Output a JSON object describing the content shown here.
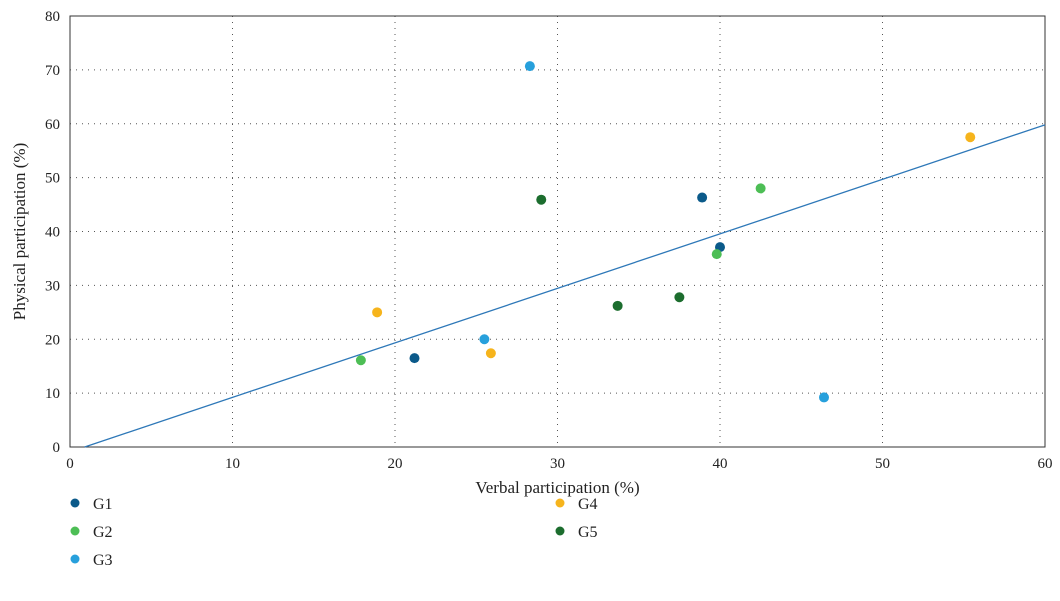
{
  "chart_data": {
    "type": "scatter",
    "xlabel": "Verbal participation (%)",
    "ylabel": "Physical participation (%)",
    "xlim": [
      0,
      60
    ],
    "ylim": [
      0,
      80
    ],
    "x_ticks": [
      0,
      10,
      20,
      30,
      40,
      50,
      60
    ],
    "y_ticks": [
      0,
      10,
      20,
      30,
      40,
      50,
      60,
      70,
      80
    ],
    "grid": true,
    "legend_position": "bottom",
    "series": [
      {
        "name": "G1",
        "color": "#0b5a8a",
        "points": [
          {
            "x": 21.2,
            "y": 16.5
          },
          {
            "x": 38.9,
            "y": 46.3
          },
          {
            "x": 40.0,
            "y": 37.1
          }
        ]
      },
      {
        "name": "G2",
        "color": "#4dbe55",
        "points": [
          {
            "x": 17.9,
            "y": 16.1
          },
          {
            "x": 39.8,
            "y": 35.8
          },
          {
            "x": 42.5,
            "y": 48.0
          }
        ]
      },
      {
        "name": "G3",
        "color": "#27a0dc",
        "points": [
          {
            "x": 25.5,
            "y": 20.0
          },
          {
            "x": 28.3,
            "y": 70.7
          },
          {
            "x": 46.4,
            "y": 9.2
          }
        ]
      },
      {
        "name": "G4",
        "color": "#f6b41c",
        "points": [
          {
            "x": 18.9,
            "y": 25.0
          },
          {
            "x": 25.9,
            "y": 17.4
          },
          {
            "x": 55.4,
            "y": 57.5
          }
        ]
      },
      {
        "name": "G5",
        "color": "#1c6d2e",
        "points": [
          {
            "x": 29.0,
            "y": 45.9
          },
          {
            "x": 33.7,
            "y": 26.2
          },
          {
            "x": 37.5,
            "y": 27.8
          }
        ]
      }
    ],
    "trendline": {
      "color": "#2e78b8",
      "start": {
        "x": 0.9,
        "y": 0
      },
      "end": {
        "x": 60,
        "y": 59.8
      }
    }
  }
}
